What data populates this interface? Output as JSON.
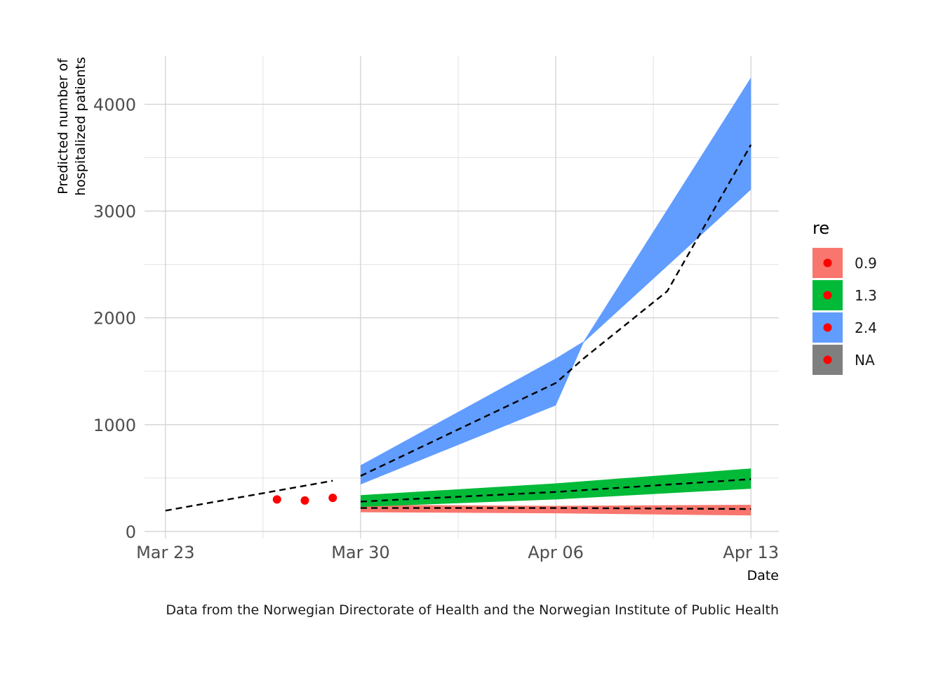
{
  "chart_data": {
    "type": "line",
    "xlabel": "Date",
    "ylabel_line1": "Predicted number of",
    "ylabel_line2": "hospitalized patients",
    "caption": "Data from the Norwegian Directorate of Health and the Norwegian Institute of Public Health",
    "x_ticks": [
      {
        "date": "2020-03-23",
        "label": "Mar 23"
      },
      {
        "date": "2020-03-30",
        "label": "Mar 30"
      },
      {
        "date": "2020-04-06",
        "label": "Apr 06"
      },
      {
        "date": "2020-04-13",
        "label": "Apr 13"
      }
    ],
    "x_minor_ticks": [
      "2020-03-26T12:00",
      "2020-04-02T12:00",
      "2020-04-09T12:00"
    ],
    "x_range": [
      "2020-03-22T06:00",
      "2020-04-14T00:00"
    ],
    "y_ticks": [
      0,
      1000,
      2000,
      3000,
      4000
    ],
    "y_minor_ticks": [
      500,
      1500,
      2500,
      3500
    ],
    "ylim": [
      0,
      4450
    ],
    "grid": true,
    "legend": {
      "title": "re",
      "position": "right",
      "entries": [
        {
          "label": "0.9",
          "color": "#F8766D"
        },
        {
          "label": "1.3",
          "color": "#00BA38"
        },
        {
          "label": "2.4",
          "color": "#619CFF"
        },
        {
          "label": "NA",
          "color": "#7F7F7F"
        }
      ],
      "point_color": "#FF0000"
    },
    "historical_trend": [
      {
        "x": "2020-03-23",
        "y": 195
      },
      {
        "x": "2020-03-29",
        "y": 475
      }
    ],
    "observed_points": [
      {
        "x": "2020-03-27",
        "y": 300
      },
      {
        "x": "2020-03-28",
        "y": 290
      },
      {
        "x": "2020-03-29",
        "y": 315
      }
    ],
    "series": [
      {
        "name": "0.9",
        "color": "#F8766D",
        "band": [
          {
            "x": "2020-03-30",
            "lower": 180,
            "upper": 250
          },
          {
            "x": "2020-04-06",
            "lower": 170,
            "upper": 240
          },
          {
            "x": "2020-04-13",
            "lower": 150,
            "upper": 250
          }
        ],
        "median": [
          {
            "x": "2020-03-30",
            "y": 220
          },
          {
            "x": "2020-04-06",
            "y": 220
          },
          {
            "x": "2020-04-13",
            "y": 210
          }
        ]
      },
      {
        "name": "1.3",
        "color": "#00BA38",
        "band": [
          {
            "x": "2020-03-30",
            "lower": 230,
            "upper": 340
          },
          {
            "x": "2020-04-06",
            "lower": 300,
            "upper": 450
          },
          {
            "x": "2020-04-13",
            "lower": 400,
            "upper": 590
          }
        ],
        "median": [
          {
            "x": "2020-03-30",
            "y": 280
          },
          {
            "x": "2020-04-06",
            "y": 370
          },
          {
            "x": "2020-04-13",
            "y": 490
          }
        ]
      },
      {
        "name": "2.4",
        "color": "#619CFF",
        "band": [
          {
            "x": "2020-03-30",
            "lower": 440,
            "upper": 620
          },
          {
            "x": "2020-04-06",
            "lower": 1180,
            "upper": 1620
          },
          {
            "x": "2020-04-07",
            "lower": 1770,
            "upper": 1780
          },
          {
            "x": "2020-04-13",
            "lower": 3200,
            "upper": 4250
          }
        ],
        "median": [
          {
            "x": "2020-03-30",
            "y": 520
          },
          {
            "x": "2020-04-06",
            "y": 1390
          },
          {
            "x": "2020-04-07",
            "y": 1620
          },
          {
            "x": "2020-04-10",
            "y": 2250
          },
          {
            "x": "2020-04-13",
            "y": 3620
          }
        ]
      }
    ]
  }
}
